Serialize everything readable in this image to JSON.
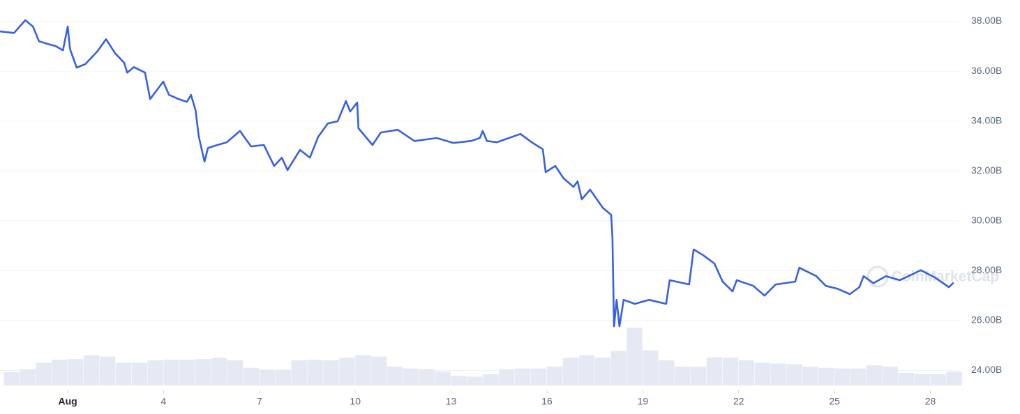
{
  "chart_data": {
    "type": "line",
    "color": "#3861e0",
    "x": [
      -1.12,
      -0.68,
      -0.33,
      -0.09,
      0.1,
      0.37,
      0.63,
      0.85,
      1.0,
      1.07,
      1.28,
      1.55,
      1.94,
      2.2,
      2.48,
      2.77,
      2.86,
      3.07,
      3.42,
      3.58,
      3.99,
      4.17,
      4.47,
      4.73,
      4.86,
      5.0,
      5.1,
      5.28,
      5.39,
      5.69,
      5.98,
      6.39,
      6.74,
      7.14,
      7.46,
      7.7,
      7.88,
      8.27,
      8.58,
      8.84,
      9.14,
      9.45,
      9.71,
      9.84,
      10.06,
      10.1,
      10.54,
      10.8,
      11.33,
      11.85,
      12.55,
      13.07,
      13.62,
      13.9,
      13.99,
      14.12,
      14.43,
      15.17,
      15.52,
      15.87,
      15.96,
      16.26,
      16.52,
      16.83,
      16.96,
      17.09,
      17.35,
      17.75,
      18.01,
      18.05,
      18.1,
      18.18,
      18.27,
      18.4,
      18.75,
      19.19,
      19.73,
      19.84,
      20.45,
      20.59,
      20.89,
      21.24,
      21.5,
      21.81,
      21.94,
      22.46,
      22.81,
      23.16,
      23.77,
      23.9,
      24.43,
      24.73,
      25.08,
      25.48,
      25.78,
      25.91,
      26.22,
      26.61,
      27.05,
      27.7,
      28.14,
      28.58,
      28.71
    ],
    "values": [
      37.59,
      37.53,
      38.04,
      37.79,
      37.2,
      37.09,
      37.0,
      36.83,
      37.79,
      36.89,
      36.14,
      36.28,
      36.81,
      37.28,
      36.72,
      36.33,
      35.94,
      36.16,
      35.94,
      34.88,
      35.58,
      35.05,
      34.88,
      34.77,
      35.05,
      34.43,
      33.4,
      32.37,
      32.92,
      33.04,
      33.15,
      33.6,
      32.98,
      33.04,
      32.2,
      32.53,
      32.03,
      32.84,
      32.53,
      33.37,
      33.9,
      33.99,
      34.8,
      34.38,
      34.74,
      33.71,
      33.04,
      33.54,
      33.65,
      33.2,
      33.32,
      33.12,
      33.2,
      33.32,
      33.6,
      33.2,
      33.15,
      33.48,
      33.15,
      32.87,
      31.95,
      32.2,
      31.7,
      31.36,
      31.58,
      30.86,
      31.25,
      30.52,
      30.24,
      29.35,
      25.77,
      26.83,
      25.77,
      26.83,
      26.67,
      26.83,
      26.67,
      27.62,
      27.45,
      28.85,
      28.62,
      28.29,
      27.56,
      27.17,
      27.62,
      27.39,
      27.0,
      27.45,
      27.56,
      28.12,
      27.78,
      27.39,
      27.28,
      27.06,
      27.34,
      27.78,
      27.5,
      27.78,
      27.62,
      28.02,
      27.73,
      27.34,
      27.5
    ],
    "volume": {
      "color": "#e4e9f3",
      "x": [
        -1,
        -0.5,
        0,
        0.5,
        1,
        1.5,
        2,
        2.5,
        3,
        3.5,
        4,
        4.5,
        5,
        5.5,
        6,
        6.5,
        7,
        7.5,
        8,
        8.5,
        9,
        9.5,
        10,
        10.5,
        11,
        11.5,
        12,
        12.5,
        13,
        13.5,
        14,
        14.5,
        15,
        15.5,
        16,
        16.5,
        17,
        17.5,
        18,
        18.5,
        19,
        19.5,
        20,
        20.5,
        21,
        21.5,
        22,
        22.5,
        23,
        23.5,
        24,
        24.5,
        25,
        25.5,
        26,
        26.5,
        27,
        27.5,
        28,
        28.5
      ],
      "values": [
        21,
        26,
        36,
        41,
        42,
        48,
        46,
        36,
        36,
        40,
        41,
        41,
        42,
        44,
        40,
        28,
        25,
        25,
        40,
        41,
        40,
        44,
        48,
        46,
        30,
        27,
        26,
        22,
        15,
        14,
        18,
        26,
        27,
        27,
        30,
        44,
        48,
        44,
        55,
        92,
        56,
        40,
        30,
        30,
        45,
        44,
        40,
        36,
        35,
        34,
        30,
        28,
        27,
        27,
        32,
        30,
        20,
        18,
        18,
        22
      ]
    },
    "xlim": [
      -1.12,
      28.71
    ],
    "xticks": [
      {
        "value": 1,
        "label": "Aug"
      },
      4,
      7,
      10,
      13,
      16,
      19,
      22,
      25,
      28
    ],
    "ylim": [
      23.4,
      38.6
    ],
    "yticks": [
      {
        "value": 24,
        "label": "24.00B"
      },
      {
        "value": 26,
        "label": "26.00B"
      },
      {
        "value": 28,
        "label": "28.00B"
      },
      {
        "value": 30,
        "label": "30.00B"
      },
      {
        "value": 32,
        "label": "32.00B"
      },
      {
        "value": 34,
        "label": "34.00B"
      },
      {
        "value": 36,
        "label": "36.00B"
      },
      {
        "value": 38,
        "label": "38.00B"
      }
    ],
    "y2lim": [
      0,
      100
    ],
    "grid": true,
    "watermark": "CoinMarketCap"
  }
}
